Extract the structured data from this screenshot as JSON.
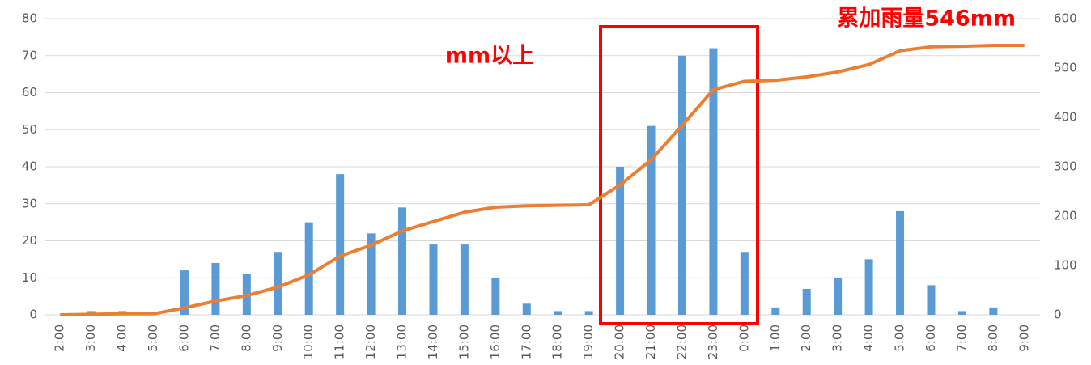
{
  "chart_data": {
    "type": "bar_line",
    "categories": [
      "2:00",
      "3:00",
      "4:00",
      "5:00",
      "6:00",
      "7:00",
      "8:00",
      "9:00",
      "10:00",
      "11:00",
      "12:00",
      "13:00",
      "14:00",
      "15:00",
      "16:00",
      "17:00",
      "18:00",
      "19:00",
      "20:00",
      "21:00",
      "22:00",
      "23:00",
      "0:00",
      "1:00",
      "2:00",
      "3:00",
      "4:00",
      "5:00",
      "6:00",
      "7:00",
      "8:00",
      "9:00"
    ],
    "series": [
      {
        "type": "bar",
        "color": "#5b9bd5",
        "values": [
          0,
          1,
          1,
          0,
          12,
          14,
          11,
          17,
          25,
          38,
          22,
          29,
          19,
          19,
          10,
          3,
          1,
          1,
          40,
          51,
          70,
          72,
          17,
          2,
          7,
          10,
          15,
          28,
          8,
          1,
          2,
          0
        ]
      },
      {
        "type": "line",
        "axis": "y2",
        "color": "#ed7d31",
        "values": [
          0,
          1,
          2,
          2,
          14,
          28,
          39,
          56,
          81,
          119,
          141,
          170,
          189,
          208,
          218,
          221,
          222,
          223,
          263,
          314,
          384,
          456,
          473,
          475,
          482,
          492,
          507,
          535,
          543,
          544,
          546,
          546
        ]
      }
    ],
    "ylim": [
      0,
      80
    ],
    "yticks": [
      0,
      10,
      20,
      30,
      40,
      50,
      60,
      70,
      80
    ],
    "y2lim": [
      0,
      600
    ],
    "y2ticks": [
      0,
      100,
      200,
      300,
      400,
      500,
      600
    ],
    "grid": true,
    "annotations": [
      "累加雨量546mm",
      "mm以上"
    ]
  }
}
